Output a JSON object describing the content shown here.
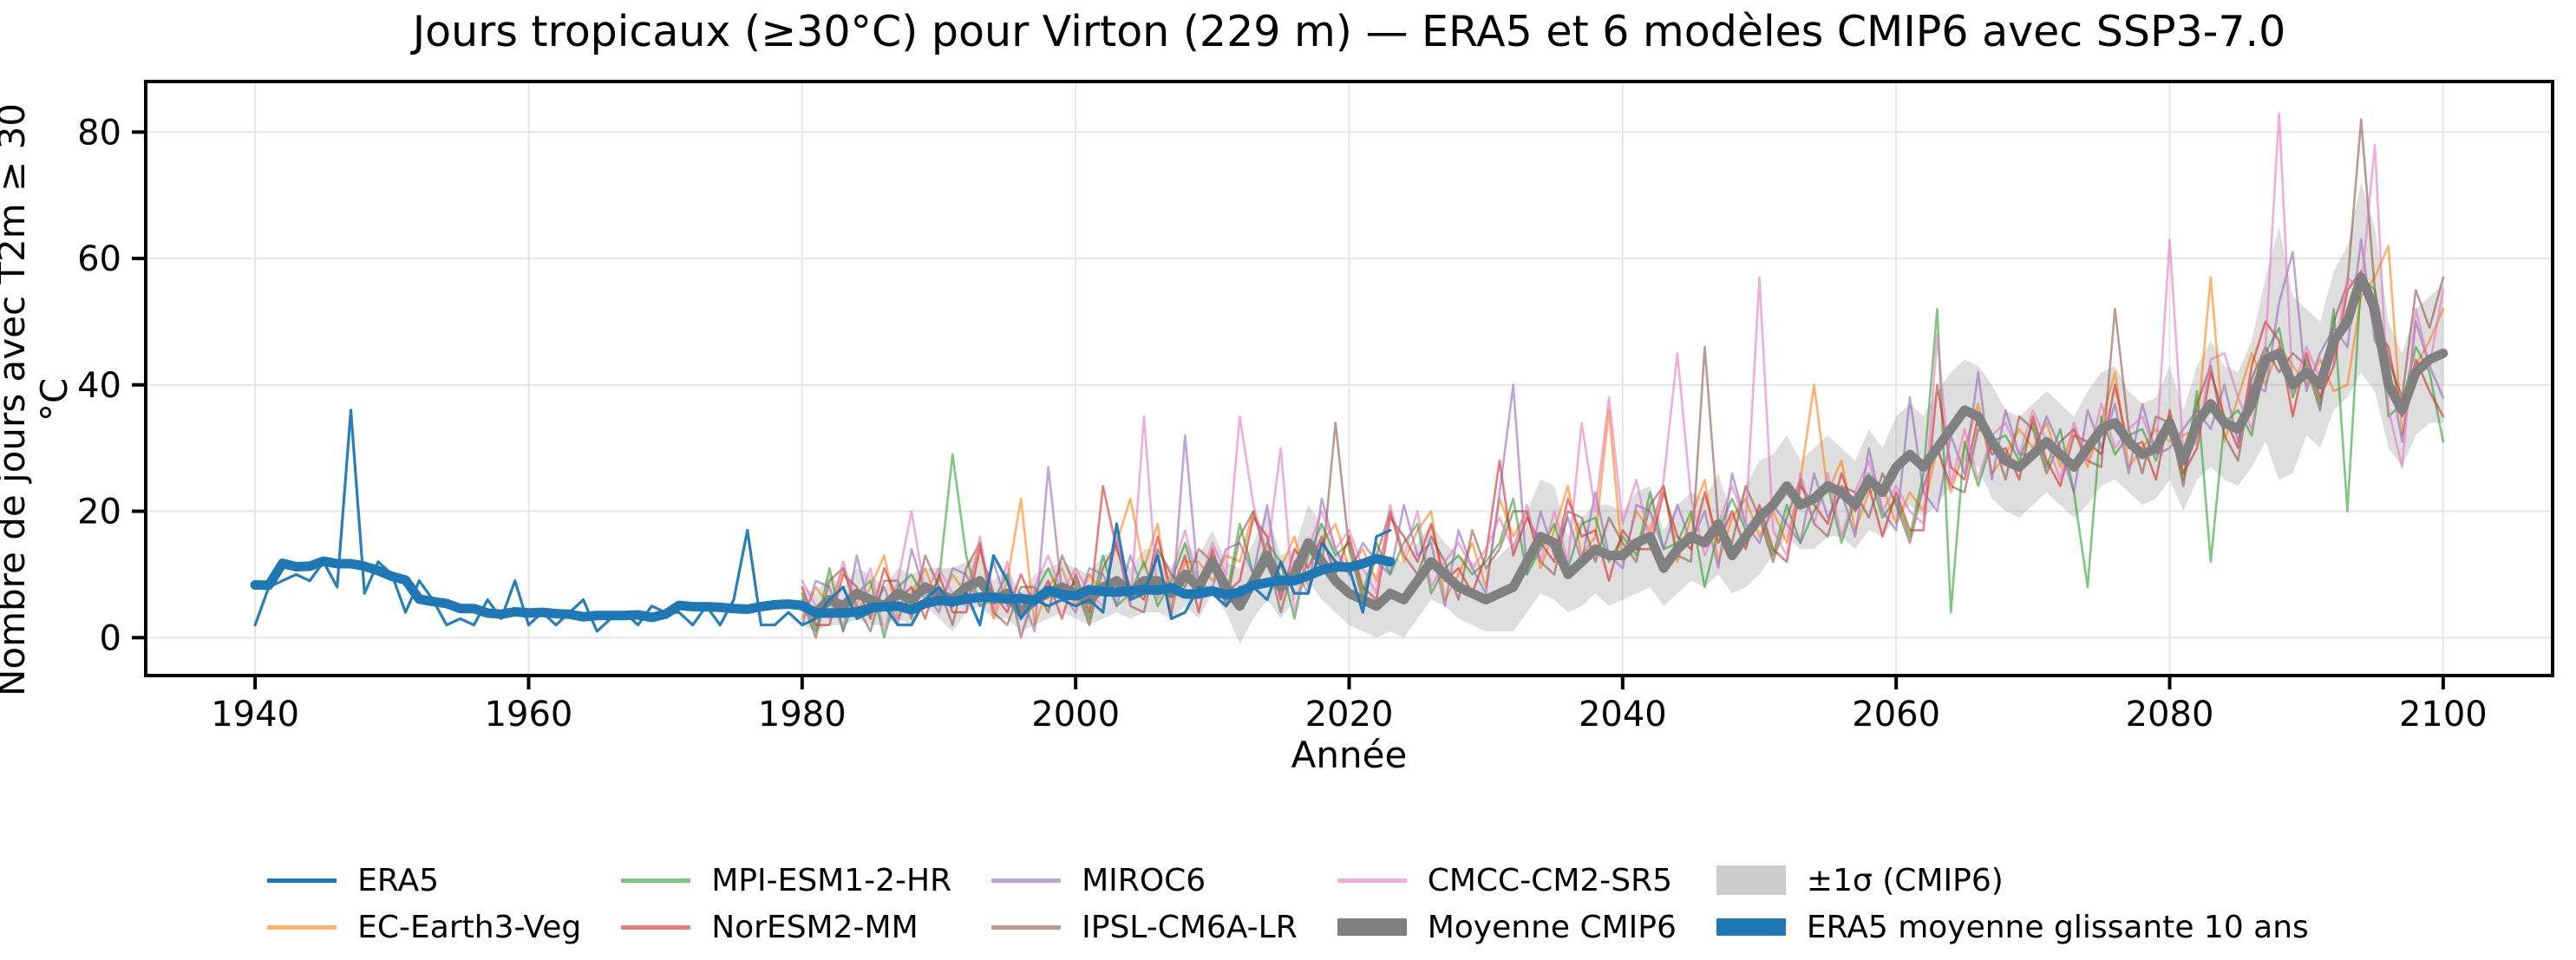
{
  "figure": {
    "title": "Jours tropicaux (≥30°C) pour Virton (229 m) — ERA5 et 6 modèles CMIP6 avec SSP3-7.0",
    "xlabel": "Année",
    "ylabel": "Nombre de jours avec T2m ≥ 30 °C"
  },
  "chart_data": {
    "type": "line",
    "title": "Jours tropicaux (≥30°C) pour Virton (229 m) — ERA5 et 6 modèles CMIP6 avec SSP3-7.0",
    "xlabel": "Année",
    "ylabel": "Nombre de jours avec T2m ≥ 30 °C",
    "xlim": [
      1932,
      2108
    ],
    "ylim": [
      -6,
      88
    ],
    "xticks": [
      1940,
      1960,
      1980,
      2000,
      2020,
      2040,
      2060,
      2080,
      2100
    ],
    "yticks": [
      0,
      20,
      40,
      60,
      80
    ],
    "grid": true,
    "grid_color": "#e6e6e6",
    "background": "#ffffff",
    "band": {
      "name": "±1σ (CMIP6)",
      "color": "#999999",
      "opacity": 0.32,
      "start_year": 1980,
      "mean_ref": "Moyenne CMIP6",
      "sigma": [
        3,
        3,
        4,
        3,
        4,
        4,
        3,
        4,
        4,
        3,
        4,
        5,
        4,
        4,
        3,
        4,
        3,
        4,
        4,
        4,
        4,
        4,
        5,
        5,
        4,
        5,
        5,
        4,
        5,
        5,
        5,
        4,
        6,
        6,
        7,
        5,
        4,
        6,
        6,
        5,
        5,
        5,
        5,
        6,
        6,
        6,
        6,
        5,
        5,
        5,
        5,
        6,
        7,
        8,
        9,
        9,
        6,
        7,
        7,
        8,
        7,
        8,
        8,
        6,
        7,
        7,
        7,
        8,
        6,
        8,
        9,
        8,
        8,
        7,
        8,
        8,
        7,
        7,
        8,
        7,
        8,
        8,
        8,
        9,
        9,
        8,
        8,
        9,
        8,
        8,
        8,
        8,
        8,
        8,
        9,
        9,
        9,
        8,
        8,
        8,
        9,
        8,
        9,
        10,
        9,
        9,
        10,
        13,
        20,
        14,
        10,
        10,
        11,
        12,
        15,
        13,
        10,
        9,
        10,
        10,
        11
      ]
    },
    "series": [
      {
        "name": "EC-Earth3-Veg",
        "role": "model",
        "color": "#ff7f0e",
        "opacity": 0.6,
        "width": 2.6,
        "start_year": 1980,
        "values": [
          3,
          8,
          5,
          11,
          4,
          8,
          13,
          3,
          7,
          11,
          5,
          10,
          7,
          15,
          3,
          9,
          22,
          2,
          8,
          11,
          5,
          10,
          7,
          15,
          22,
          11,
          18,
          4,
          12,
          12,
          9,
          13,
          12,
          20,
          12,
          11,
          16,
          8,
          15,
          18,
          11,
          14,
          9,
          20,
          12,
          17,
          20,
          6,
          10,
          15,
          8,
          22,
          16,
          20,
          11,
          17,
          24,
          13,
          16,
          36,
          12,
          20,
          17,
          24,
          12,
          19,
          25,
          12,
          19,
          22,
          16,
          20,
          15,
          25,
          40,
          23,
          28,
          17,
          23,
          24,
          18,
          23,
          20,
          30,
          23,
          30,
          37,
          26,
          29,
          33,
          30,
          34,
          27,
          33,
          27,
          34,
          42,
          27,
          30,
          33,
          31,
          32,
          33,
          57,
          31,
          38,
          45,
          40,
          46,
          43,
          40,
          44,
          39,
          40,
          54,
          57,
          62,
          32,
          43,
          47,
          52
        ]
      },
      {
        "name": "MPI-ESM1-2-HR",
        "role": "model",
        "color": "#2ca02c",
        "opacity": 0.6,
        "width": 2.6,
        "start_year": 1980,
        "values": [
          7,
          1,
          11,
          1,
          7,
          9,
          0,
          8,
          10,
          6,
          9,
          29,
          13,
          5,
          6,
          10,
          0,
          7,
          11,
          6,
          9,
          3,
          13,
          5,
          7,
          12,
          5,
          9,
          15,
          7,
          13,
          6,
          18,
          10,
          15,
          12,
          3,
          13,
          18,
          13,
          15,
          7,
          15,
          10,
          15,
          18,
          7,
          11,
          13,
          10,
          12,
          15,
          22,
          10,
          14,
          18,
          11,
          18,
          19,
          12,
          16,
          13,
          23,
          14,
          15,
          20,
          8,
          17,
          22,
          17,
          20,
          13,
          21,
          15,
          20,
          24,
          15,
          22,
          26,
          19,
          22,
          16,
          26,
          52,
          4,
          31,
          24,
          31,
          32,
          28,
          34,
          27,
          33,
          23,
          8,
          35,
          29,
          32,
          33,
          28,
          35,
          25,
          39,
          12,
          34,
          36,
          32,
          45,
          49,
          38,
          44,
          37,
          52,
          20,
          57,
          55,
          35,
          37,
          46,
          42,
          31
        ]
      },
      {
        "name": "NorESM2-MM",
        "role": "model",
        "color": "#d62728",
        "opacity": 0.6,
        "width": 2.6,
        "start_year": 1980,
        "values": [
          8,
          2,
          2,
          10,
          8,
          3,
          11,
          6,
          8,
          3,
          10,
          4,
          4,
          14,
          7,
          4,
          10,
          5,
          9,
          3,
          10,
          4,
          24,
          14,
          8,
          6,
          16,
          7,
          13,
          4,
          14,
          7,
          9,
          19,
          16,
          6,
          14,
          11,
          16,
          10,
          16,
          8,
          6,
          19,
          16,
          12,
          18,
          9,
          11,
          7,
          13,
          28,
          13,
          19,
          15,
          12,
          22,
          16,
          17,
          9,
          17,
          14,
          14,
          23,
          16,
          14,
          23,
          15,
          20,
          14,
          21,
          14,
          12,
          24,
          21,
          18,
          26,
          20,
          24,
          16,
          23,
          17,
          17,
          40,
          27,
          25,
          35,
          29,
          30,
          25,
          35,
          28,
          24,
          32,
          31,
          29,
          40,
          30,
          31,
          25,
          36,
          26,
          30,
          42,
          35,
          30,
          43,
          50,
          47,
          35,
          45,
          38,
          43,
          55,
          58,
          49,
          46,
          35,
          44,
          39,
          35
        ]
      },
      {
        "name": "MIROC6",
        "role": "model",
        "color": "#9467bd",
        "opacity": 0.6,
        "width": 2.6,
        "start_year": 1980,
        "values": [
          2,
          9,
          8,
          1,
          13,
          4,
          8,
          2,
          14,
          7,
          4,
          11,
          10,
          5,
          12,
          5,
          7,
          1,
          27,
          7,
          4,
          11,
          10,
          5,
          13,
          7,
          13,
          3,
          32,
          8,
          8,
          14,
          15,
          10,
          21,
          7,
          11,
          7,
          22,
          14,
          10,
          15,
          12,
          10,
          21,
          13,
          15,
          5,
          17,
          11,
          7,
          23,
          40,
          10,
          20,
          13,
          19,
          12,
          23,
          13,
          11,
          21,
          20,
          14,
          21,
          15,
          20,
          11,
          26,
          18,
          15,
          21,
          18,
          15,
          26,
          19,
          23,
          16,
          30,
          20,
          17,
          38,
          23,
          20,
          32,
          26,
          42,
          25,
          36,
          29,
          29,
          35,
          30,
          23,
          36,
          30,
          37,
          26,
          37,
          29,
          30,
          33,
          36,
          33,
          40,
          31,
          40,
          39,
          53,
          61,
          39,
          45,
          49,
          46,
          63,
          47,
          43,
          31,
          50,
          43,
          38
        ]
      },
      {
        "name": "IPSL-CM6A-LR",
        "role": "model",
        "color": "#8c564b",
        "opacity": 0.6,
        "width": 2.6,
        "start_year": 1980,
        "values": [
          6,
          0,
          9,
          11,
          5,
          1,
          9,
          9,
          3,
          13,
          8,
          2,
          11,
          15,
          4,
          2,
          8,
          8,
          4,
          13,
          8,
          2,
          11,
          15,
          5,
          4,
          14,
          10,
          8,
          14,
          12,
          5,
          16,
          20,
          13,
          4,
          12,
          14,
          11,
          34,
          14,
          6,
          13,
          20,
          13,
          10,
          16,
          12,
          6,
          17,
          11,
          14,
          20,
          20,
          12,
          10,
          20,
          19,
          12,
          19,
          15,
          12,
          21,
          24,
          13,
          12,
          46,
          18,
          15,
          24,
          19,
          12,
          19,
          25,
          18,
          16,
          24,
          23,
          19,
          26,
          21,
          15,
          24,
          30,
          24,
          23,
          33,
          32,
          25,
          35,
          33,
          26,
          31,
          33,
          28,
          27,
          52,
          33,
          26,
          35,
          34,
          24,
          37,
          43,
          32,
          28,
          41,
          46,
          42,
          45,
          43,
          36,
          50,
          56,
          82,
          55,
          44,
          38,
          55,
          49,
          57
        ]
      },
      {
        "name": "CMCC-CM2-SR5",
        "role": "model",
        "color": "#e377c2",
        "opacity": 0.6,
        "width": 2.6,
        "start_year": 1980,
        "values": [
          9,
          5,
          3,
          12,
          5,
          11,
          1,
          9,
          20,
          7,
          11,
          7,
          5,
          16,
          4,
          12,
          0,
          8,
          13,
          7,
          11,
          7,
          5,
          16,
          5,
          35,
          6,
          10,
          17,
          8,
          15,
          10,
          35,
          21,
          13,
          30,
          4,
          14,
          20,
          14,
          17,
          11,
          7,
          21,
          13,
          20,
          8,
          12,
          15,
          11,
          14,
          19,
          14,
          21,
          12,
          20,
          12,
          34,
          20,
          38,
          18,
          25,
          15,
          25,
          45,
          22,
          13,
          18,
          24,
          18,
          57,
          17,
          13,
          26,
          18,
          26,
          16,
          23,
          28,
          20,
          24,
          20,
          18,
          48,
          24,
          33,
          25,
          32,
          34,
          29,
          36,
          31,
          25,
          34,
          28,
          37,
          30,
          33,
          35,
          29,
          63,
          29,
          31,
          44,
          45,
          38,
          33,
          46,
          83,
          39,
          46,
          41,
          44,
          57,
          55,
          78,
          36,
          27,
          52,
          43,
          55
        ]
      },
      {
        "name": "Moyenne CMIP6",
        "role": "ensemble-mean",
        "color": "#808080",
        "opacity": 1,
        "width": 11,
        "start_year": 1980,
        "values": [
          5,
          4,
          6,
          5,
          7,
          6,
          5,
          7,
          6,
          8,
          7,
          6,
          8,
          9,
          6,
          7,
          4,
          6,
          7,
          8,
          7,
          6,
          8,
          9,
          7,
          9,
          9,
          7,
          10,
          8,
          12,
          8,
          5,
          9,
          13,
          8,
          10,
          15,
          12,
          9,
          7,
          6,
          5,
          7,
          6,
          9,
          12,
          10,
          8,
          7,
          6,
          7,
          8,
          12,
          16,
          15,
          10,
          12,
          14,
          13,
          13,
          15,
          16,
          11,
          14,
          16,
          15,
          18,
          13,
          16,
          19,
          21,
          24,
          21,
          22,
          24,
          23,
          21,
          25,
          23,
          27,
          29,
          27,
          30,
          33,
          36,
          35,
          31,
          28,
          27,
          29,
          31,
          29,
          27,
          30,
          33,
          34,
          31,
          29,
          30,
          34,
          28,
          34,
          37,
          34,
          33,
          37,
          44,
          45,
          40,
          42,
          40,
          47,
          50,
          57,
          52,
          40,
          36,
          42,
          44,
          45
        ]
      },
      {
        "name": "ERA5",
        "role": "observation",
        "color": "#1f77b4",
        "opacity": 0.95,
        "width": 3.2,
        "start_year": 1940,
        "values": [
          2,
          8,
          9,
          10,
          9,
          12,
          8,
          36,
          7,
          12,
          10,
          4,
          9,
          6,
          2,
          3,
          2,
          6,
          3,
          9,
          2,
          4,
          2,
          4,
          6,
          1,
          3,
          4,
          2,
          5,
          4,
          4,
          2,
          5,
          2,
          6,
          17,
          2,
          2,
          4,
          2,
          3,
          6,
          8,
          3,
          4,
          5,
          2,
          2,
          6,
          8,
          5,
          7,
          2,
          13,
          9,
          3,
          6,
          5,
          6,
          5,
          6,
          4,
          18,
          6,
          7,
          13,
          3,
          4,
          8,
          7,
          5,
          8,
          8,
          6,
          12,
          7,
          7,
          15,
          12,
          11,
          4,
          16,
          17
        ]
      }
    ],
    "derived": {
      "era5_rolling": {
        "name": "ERA5 moyenne glissante 10 ans",
        "source": "ERA5",
        "window_years": 10,
        "color": "#1f77b4",
        "opacity": 1,
        "width": 11
      }
    },
    "legend": {
      "position": "bottom-center",
      "ncol": 5,
      "entries": [
        {
          "label": "ERA5",
          "swatch": "line",
          "color": "#1f77b4",
          "opacity": 1
        },
        {
          "label": "EC-Earth3-Veg",
          "swatch": "line",
          "color": "#ff7f0e",
          "opacity": 0.6
        },
        {
          "label": "MPI-ESM1-2-HR",
          "swatch": "line",
          "color": "#2ca02c",
          "opacity": 0.6
        },
        {
          "label": "NorESM2-MM",
          "swatch": "line",
          "color": "#d62728",
          "opacity": 0.6
        },
        {
          "label": "MIROC6",
          "swatch": "line",
          "color": "#9467bd",
          "opacity": 0.6
        },
        {
          "label": "IPSL-CM6A-LR",
          "swatch": "line",
          "color": "#8c564b",
          "opacity": 0.6
        },
        {
          "label": "CMCC-CM2-SR5",
          "swatch": "line",
          "color": "#e377c2",
          "opacity": 0.6
        },
        {
          "label": "Moyenne CMIP6",
          "swatch": "thick-line",
          "color": "#808080",
          "opacity": 1
        },
        {
          "label": "±1σ (CMIP6)",
          "swatch": "patch",
          "color": "#cccccc",
          "opacity": 1
        },
        {
          "label": "ERA5 moyenne glissante 10 ans",
          "swatch": "thick-line",
          "color": "#1f77b4",
          "opacity": 1
        }
      ]
    }
  }
}
